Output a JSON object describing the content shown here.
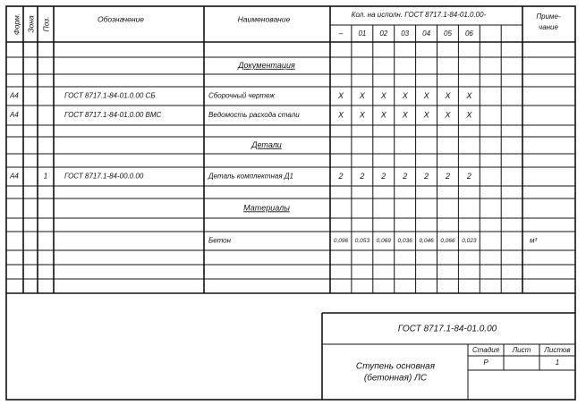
{
  "header": {
    "format": "Форм.",
    "zone": "Зона",
    "pos": "Поз.",
    "designation": "Обозначение",
    "name": "Наименование",
    "qty": "Кол. на исполн. ГОСТ 8717.1-84-01.0.00-",
    "variants": [
      "–",
      "01",
      "02",
      "03",
      "04",
      "05",
      "06"
    ],
    "note": "Приме-\nчание"
  },
  "rows": [
    {
      "section": "Документация"
    },
    {
      "format": "А4",
      "designation": "ГОСТ 8717.1-84-01.0.00 СБ",
      "name": "Сборочный чертеж",
      "qty": [
        "X",
        "X",
        "X",
        "X",
        "X",
        "X",
        "X"
      ]
    },
    {
      "format": "А4",
      "designation": "ГОСТ 8717.1-84-01.0.00 ВМС",
      "name": "Ведомость расхода стали",
      "qty": [
        "X",
        "X",
        "X",
        "X",
        "X",
        "X",
        "X"
      ]
    },
    {
      "section": "Детали"
    },
    {
      "format": "А4",
      "pos": "1",
      "designation": "ГОСТ 8717.1-84-00.0.00",
      "name": "Деталь комплектная Д1",
      "qty": [
        "2",
        "2",
        "2",
        "2",
        "2",
        "2",
        "2"
      ]
    },
    {
      "section": "Материалы"
    },
    {
      "name": "Бетон",
      "qty": [
        "0,096",
        "0,053",
        "0,069",
        "0,036",
        "0,046",
        "0,066",
        "0,023"
      ],
      "note": "м³"
    }
  ],
  "title_block": {
    "designation": "ГОСТ 8717.1-84-01.0.00",
    "name": "Ступень основная\n(бетонная) ЛС",
    "stage_label": "Стадия",
    "sheet_label": "Лист",
    "sheets_label": "Листов",
    "stage": "Р",
    "sheets": "1"
  }
}
